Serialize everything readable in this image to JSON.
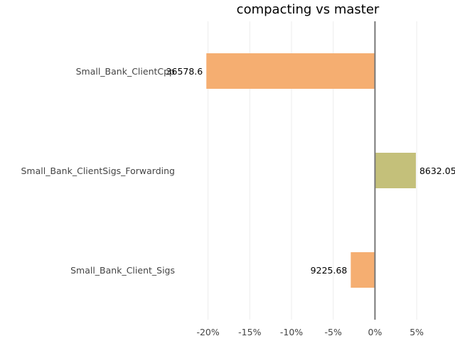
{
  "chart_data": {
    "type": "bar",
    "orientation": "horizontal",
    "title": "compacting vs master",
    "xlabel": "",
    "ylabel": "",
    "grid": true,
    "xlim": [
      -0.215,
      0.055
    ],
    "x_ticks": [
      -0.2,
      -0.15,
      -0.1,
      -0.05,
      0,
      0.05
    ],
    "x_tick_labels": [
      "-20%",
      "-15%",
      "-10%",
      "-5%",
      "0%",
      "5%"
    ],
    "categories": [
      "Small_Bank_ClientCpp",
      "Small_Bank_ClientSigs_Forwarding",
      "Small_Bank_Client_Sigs"
    ],
    "values": [
      -0.202,
      0.049,
      -0.029
    ],
    "value_labels": [
      "36578.6",
      "8632.05",
      "9225.68"
    ],
    "colors": [
      "#f5ae71",
      "#c4c07a",
      "#f5ae71"
    ]
  }
}
